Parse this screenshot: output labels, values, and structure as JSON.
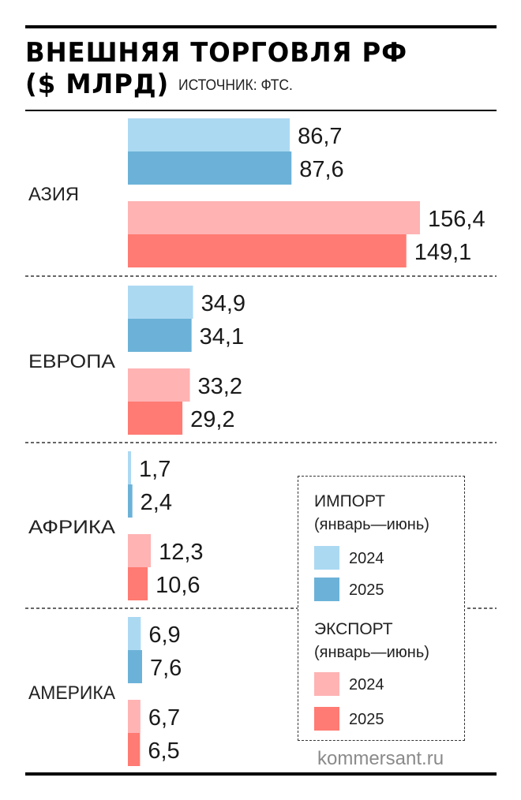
{
  "title_line1": "ВНЕШНЯЯ ТОРГОВЛЯ РФ",
  "title_line2": "($ МЛРД)",
  "source": "ИСТОЧНИК: ФТС.",
  "watermark": "kommersant.ru",
  "legend": {
    "import_title": "ИМПОРТ",
    "import_period": "(январь—июнь)",
    "export_title": "ЭКСПОРТ",
    "export_period": "(январь—июнь)",
    "y2024": "2024",
    "y2025": "2025"
  },
  "colors": {
    "import_2024": "#acd9f2",
    "import_2025": "#6cb2d8",
    "export_2024": "#ffb3b3",
    "export_2025": "#ff7b73"
  },
  "chart_data": {
    "type": "bar",
    "orientation": "horizontal",
    "categories": [
      "АЗИЯ",
      "ЕВРОПА",
      "АФРИКА",
      "АМЕРИКА"
    ],
    "series": [
      {
        "group": "ИМПОРТ",
        "year": "2024",
        "values": [
          86.7,
          34.9,
          1.7,
          6.9
        ],
        "labels": [
          "86,7",
          "34,9",
          "1,7",
          "6,9"
        ]
      },
      {
        "group": "ИМПОРТ",
        "year": "2025",
        "values": [
          87.6,
          34.1,
          2.4,
          7.6
        ],
        "labels": [
          "87,6",
          "34,1",
          "2,4",
          "7,6"
        ]
      },
      {
        "group": "ЭКСПОРТ",
        "year": "2024",
        "values": [
          156.4,
          33.2,
          12.3,
          6.7
        ],
        "labels": [
          "156,4",
          "33,2",
          "12,3",
          "6,7"
        ]
      },
      {
        "group": "ЭКСПОРТ",
        "year": "2025",
        "values": [
          149.1,
          29.2,
          10.6,
          6.5
        ],
        "labels": [
          "149,1",
          "29,2",
          "10,6",
          "6,5"
        ]
      }
    ],
    "title": "ВНЕШНЯЯ ТОРГОВЛЯ РФ ($ МЛРД)",
    "xlim": [
      0,
      156.4
    ]
  }
}
